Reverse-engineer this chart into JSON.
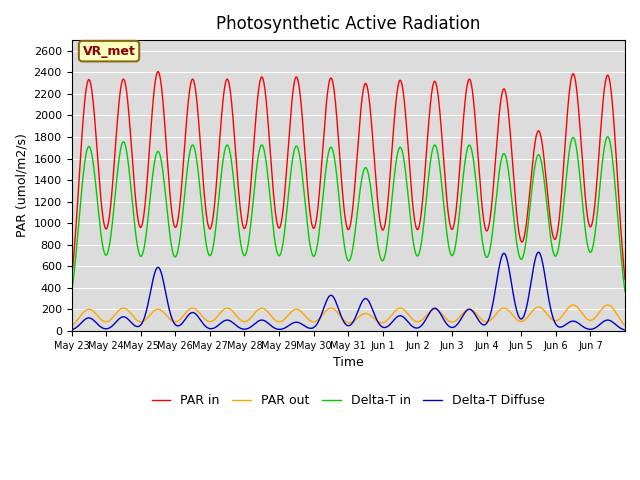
{
  "title": "Photosynthetic Active Radiation",
  "ylabel": "PAR (umol/m2/s)",
  "xlabel": "Time",
  "annotation": "VR_met",
  "ylim": [
    0,
    2700
  ],
  "yticks": [
    0,
    200,
    400,
    600,
    800,
    1000,
    1200,
    1400,
    1600,
    1800,
    2000,
    2200,
    2400,
    2600
  ],
  "x_tick_labels": [
    "May 23",
    "May 24",
    "May 25",
    "May 26",
    "May 27",
    "May 28",
    "May 29",
    "May 30",
    "May 31",
    "Jun 1",
    "Jun 2",
    "Jun 3",
    "Jun 4",
    "Jun 5",
    "Jun 6",
    "Jun 7"
  ],
  "colors": {
    "PAR_in": "#ff0000",
    "PAR_out": "#ffa500",
    "DeltaT_in": "#00cc00",
    "DeltaT_diffuse": "#0000cc"
  },
  "legend_labels": [
    "PAR in",
    "PAR out",
    "Delta-T in",
    "Delta-T Diffuse"
  ],
  "background_color": "#dcdcdc",
  "n_days": 16,
  "points_per_day": 96,
  "peaks": {
    "PAR_in": [
      2330,
      2330,
      2400,
      2330,
      2330,
      2350,
      2350,
      2340,
      2290,
      2320,
      2310,
      2330,
      2240,
      1850,
      2380,
      2370
    ],
    "PAR_out": [
      200,
      210,
      200,
      210,
      210,
      210,
      200,
      210,
      160,
      210,
      200,
      200,
      210,
      220,
      240,
      240
    ],
    "DeltaT_in": [
      1710,
      1750,
      1660,
      1720,
      1720,
      1720,
      1710,
      1700,
      1510,
      1700,
      1720,
      1720,
      1640,
      1630,
      1790,
      1800
    ],
    "DeltaT_diffuse": [
      120,
      130,
      590,
      170,
      100,
      100,
      80,
      330,
      300,
      140,
      210,
      200,
      720,
      730,
      90,
      100
    ]
  }
}
